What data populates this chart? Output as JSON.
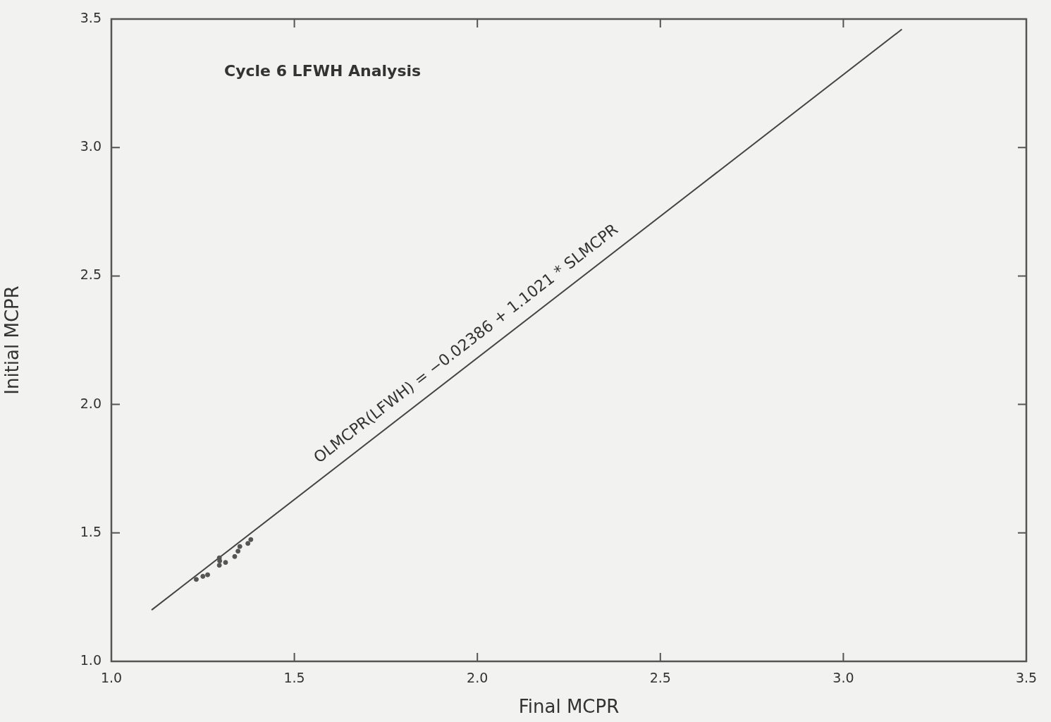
{
  "chart_data": {
    "type": "scatter",
    "xlabel": "Final MCPR",
    "ylabel": "Initial MCPR",
    "xlim": [
      1.0,
      3.5
    ],
    "ylim": [
      1.0,
      3.5
    ],
    "xticks": [
      {
        "value": 1,
        "label": "1.0"
      },
      {
        "value": 1.5,
        "label": "1.5"
      },
      {
        "value": 2,
        "label": "2.0"
      },
      {
        "value": 2.5,
        "label": "2.5"
      },
      {
        "value": 3,
        "label": "3.0"
      },
      {
        "value": 3.5,
        "label": "3.5"
      }
    ],
    "yticks": [
      {
        "value": 1,
        "label": "1.0"
      },
      {
        "value": 1.5,
        "label": "1.5"
      },
      {
        "value": 2,
        "label": "2.0"
      },
      {
        "value": 2.5,
        "label": "2.5"
      },
      {
        "value": 3,
        "label": "3.0"
      },
      {
        "value": 3.5,
        "label": "3.5"
      }
    ],
    "grid": false,
    "legend": false,
    "marker": "circle",
    "series": [
      {
        "type": "scatter",
        "color": "#555555",
        "x": [
          1.232,
          1.25,
          1.263,
          1.295,
          1.296,
          1.295,
          1.312,
          1.337,
          1.346,
          1.351,
          1.373,
          1.381
        ],
        "values": [
          1.319,
          1.331,
          1.337,
          1.403,
          1.391,
          1.374,
          1.385,
          1.408,
          1.429,
          1.447,
          1.459,
          1.474
        ]
      },
      {
        "type": "line",
        "color": "#444444",
        "line_style": "solid",
        "marker": "none",
        "x": [
          1.11,
          3.16
        ],
        "values": [
          1.2,
          3.46
        ]
      }
    ],
    "annotations": [
      "Cycle 6 LFWH Analysis",
      {
        "text": "OLMCPR(LFWH) = −0.02386 + 1.1021 * SLMCPR",
        "x": 2.0,
        "y": 2.18
      }
    ]
  }
}
